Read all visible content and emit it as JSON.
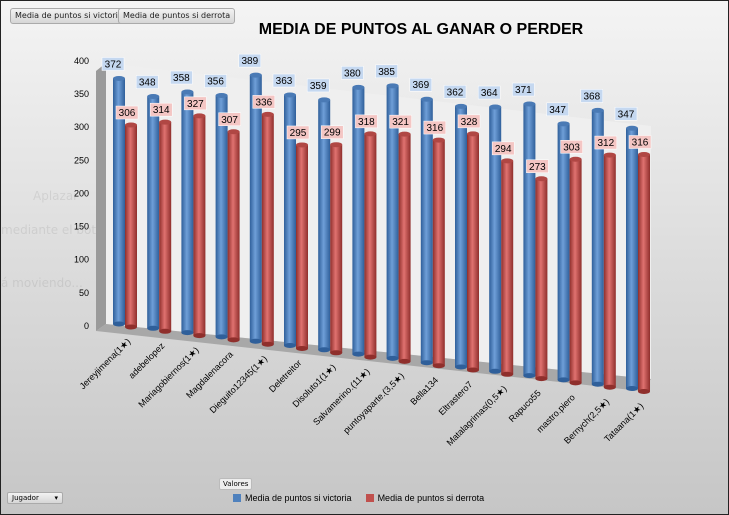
{
  "field_buttons": [
    "Media de puntos si victoria",
    "Media de puntos si derrota"
  ],
  "axis_field": "Jugador",
  "values_field": "Valores",
  "ghost_text": [
    "Aplazar",
    "mediante el botón Modo ...",
    "á moviendo..."
  ],
  "chart_data": {
    "type": "bar",
    "style": "3d-cylinder",
    "title": "MEDIA DE PUNTOS AL GANAR O PERDER",
    "xlabel": "",
    "ylabel": "",
    "ylim": [
      0,
      400
    ],
    "yticks": [
      0,
      50,
      100,
      150,
      200,
      250,
      300,
      350,
      400
    ],
    "categories": [
      "Jereyjimena(1★)",
      "adebelopez",
      "Mariagobiernos(1★)",
      "Magdalenacora",
      "Dieguito12345(1★)",
      "Deletreitor",
      "Disoluto1(1★)",
      "Salvamerino.(11★)",
      "puntoyaparte.(3,5★)",
      "Bella134",
      "Eltrastero7",
      "Matalagrimas(0,5★)",
      "Rapuco55",
      "mastro.piero",
      "Bernych(2,5★)",
      "Tataana(1★)"
    ],
    "series": [
      {
        "name": "Media de puntos si victoria",
        "color": "#4f81bd",
        "values": [
          372,
          348,
          358,
          356,
          389,
          363,
          359,
          380,
          385,
          369,
          362,
          364,
          371,
          347,
          368,
          347
        ]
      },
      {
        "name": "Media de puntos si derrota",
        "color": "#c0504d",
        "values": [
          306,
          314,
          327,
          307,
          336,
          295,
          299,
          318,
          321,
          316,
          328,
          294,
          273,
          303,
          312,
          316
        ]
      }
    ],
    "legend": "bottom"
  }
}
